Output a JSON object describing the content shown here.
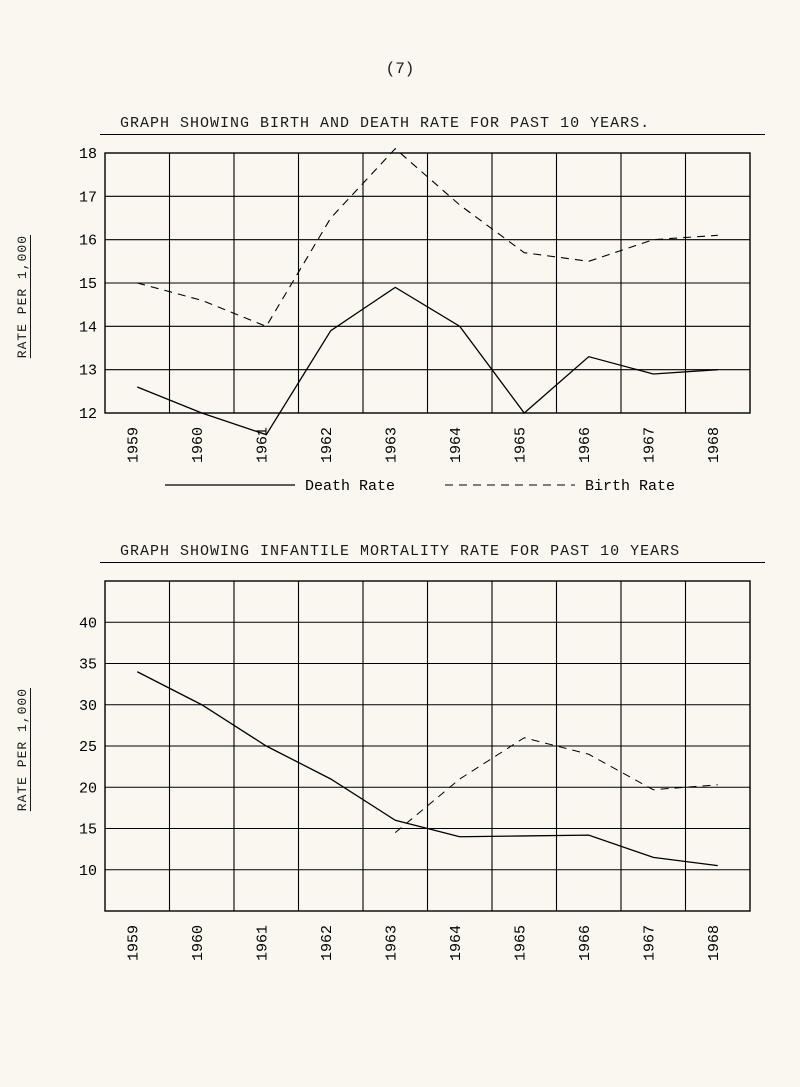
{
  "page_number": "(7)",
  "chart1": {
    "type": "line",
    "title": "GRAPH  SHOWING  BIRTH  AND  DEATH  RATE  FOR  PAST  10  YEARS.",
    "ylabel": "RATE  PER  1,000",
    "x_categories": [
      "1959",
      "1960",
      "1961",
      "1962",
      "1963",
      "1964",
      "1965",
      "1966",
      "1967",
      "1968"
    ],
    "ylim": [
      12,
      18
    ],
    "ytick_step": 1,
    "yticks": [
      "18",
      "17",
      "16",
      "15",
      "14",
      "13",
      "12"
    ],
    "series": [
      {
        "name": "Death Rate",
        "legend_label": "Death Rate",
        "dash": "solid",
        "color": "#000000",
        "line_width": 1.3,
        "values": [
          12.6,
          12.0,
          11.5,
          13.9,
          14.9,
          14.0,
          12.0,
          13.3,
          12.9,
          13.0
        ]
      },
      {
        "name": "Birth Rate",
        "legend_label": "Birth Rate",
        "dash": "dash",
        "color": "#000000",
        "line_width": 1.1,
        "values": [
          15.0,
          14.6,
          14.0,
          16.5,
          18.1,
          16.8,
          15.7,
          15.5,
          16.0,
          16.1
        ]
      }
    ],
    "grid_color": "#000000",
    "background": "#f9f7f0"
  },
  "chart2": {
    "type": "line",
    "title": "GRAPH  SHOWING  INFANTILE  MORTALITY  RATE  FOR  PAST  10  YEARS",
    "ylabel": "RATE  PER  1,000",
    "x_categories": [
      "1959",
      "1960",
      "1961",
      "1962",
      "1963",
      "1964",
      "1965",
      "1966",
      "1967",
      "1968"
    ],
    "ylim": [
      5,
      45
    ],
    "ytick_step": 5,
    "yticks": [
      "40",
      "35",
      "30",
      "25",
      "20",
      "15",
      "10"
    ],
    "series": [
      {
        "name": "line-a",
        "dash": "solid",
        "color": "#000000",
        "line_width": 1.3,
        "values": [
          34,
          30,
          25,
          21,
          16,
          14.0,
          14.1,
          14.2,
          11.5,
          10.5
        ]
      },
      {
        "name": "line-b",
        "dash": "dash",
        "color": "#000000",
        "line_width": 1.0,
        "values": [
          null,
          null,
          null,
          null,
          14.5,
          21,
          26,
          24,
          19.7,
          20.3
        ]
      }
    ],
    "grid_color": "#000000",
    "background": "#f9f7f0"
  }
}
